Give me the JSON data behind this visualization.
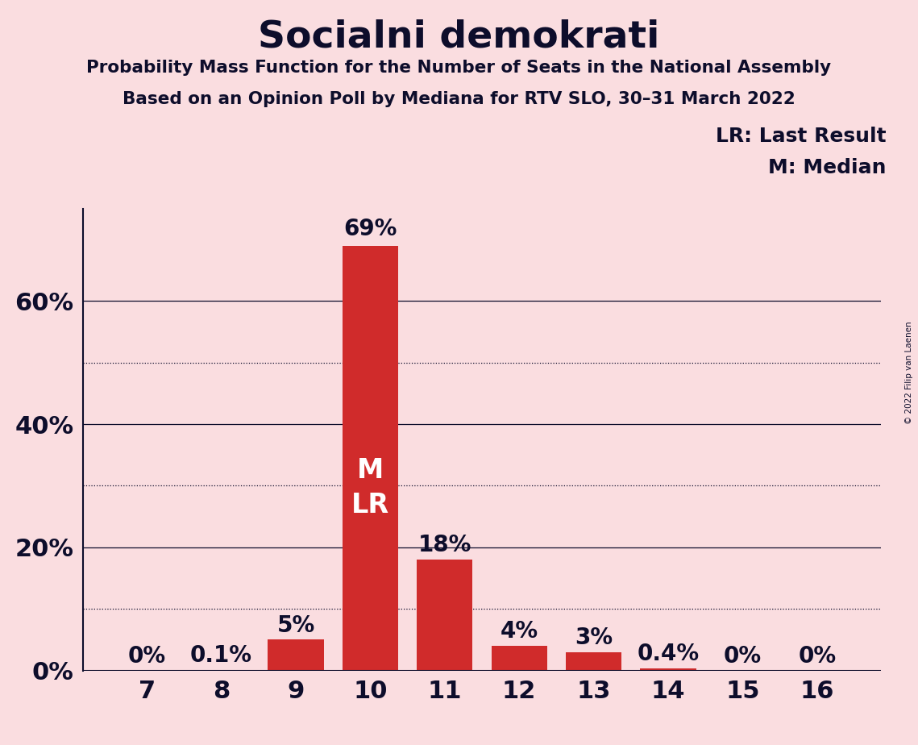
{
  "title": "Socialni demokrati",
  "subtitle1": "Probability Mass Function for the Number of Seats in the National Assembly",
  "subtitle2": "Based on an Opinion Poll by Mediana for RTV SLO, 30–31 March 2022",
  "copyright": "© 2022 Filip van Laenen",
  "categories": [
    7,
    8,
    9,
    10,
    11,
    12,
    13,
    14,
    15,
    16
  ],
  "values": [
    0.0,
    0.1,
    5.0,
    69.0,
    18.0,
    4.0,
    3.0,
    0.4,
    0.0,
    0.0
  ],
  "bar_color": "#D02B2B",
  "background_color": "#FADDE0",
  "text_color": "#0d0d2b",
  "label_formats": [
    "0%",
    "0.1%",
    "5%",
    "69%",
    "18%",
    "4%",
    "3%",
    "0.4%",
    "0%",
    "0%"
  ],
  "median_bar": 10,
  "lr_bar": 10,
  "ylim": [
    0,
    75
  ],
  "solid_gridlines": [
    20,
    40,
    60
  ],
  "dotted_gridlines": [
    10,
    30,
    50
  ],
  "yticks": [
    0,
    20,
    40,
    60
  ],
  "legend_lr": "LR: Last Result",
  "legend_m": "M: Median",
  "bar_label_color_inside": "#FFFFFF",
  "bar_label_color_outside": "#0d0d2b"
}
